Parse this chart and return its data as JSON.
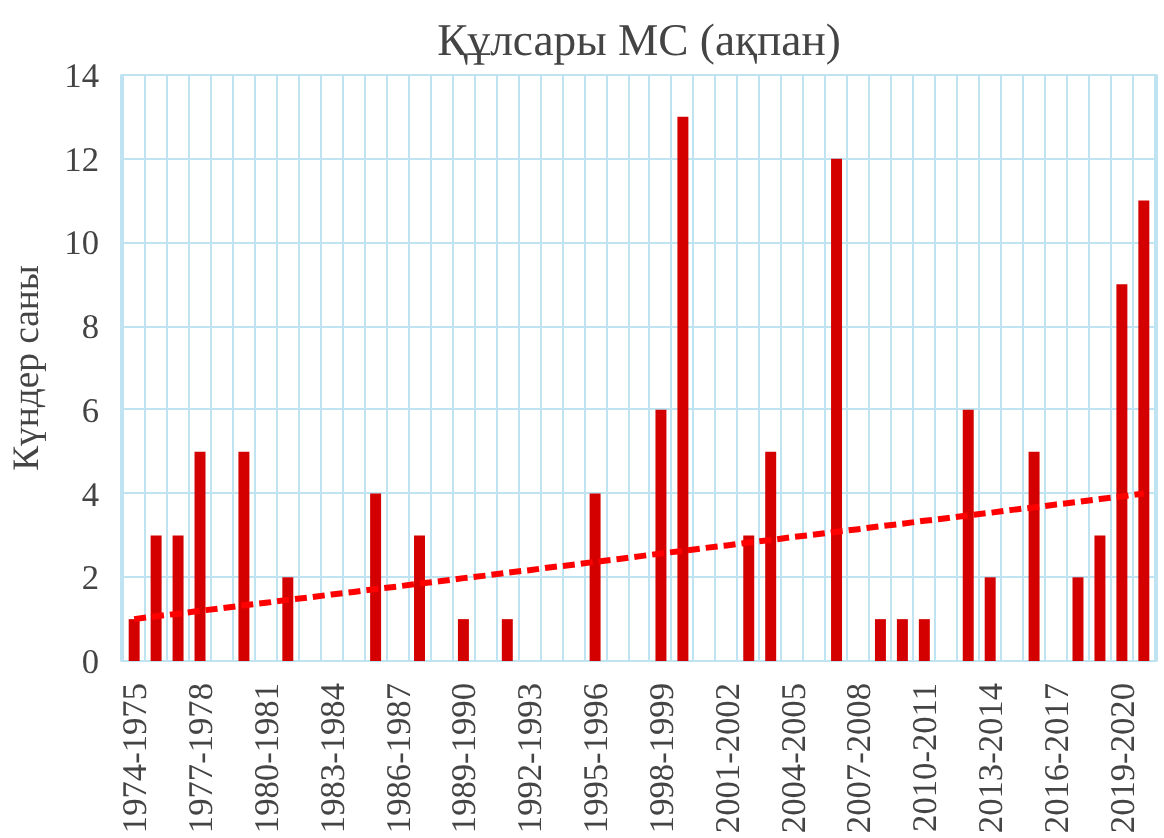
{
  "chart_data": {
    "type": "bar",
    "title": "Құлсары МС (ақпан)",
    "ylabel": "Күндер саны",
    "categories": [
      "1974-1975",
      null,
      null,
      "1977-1978",
      null,
      null,
      "1980-1981",
      null,
      null,
      "1983-1984",
      null,
      null,
      "1986-1987",
      null,
      null,
      "1989-1990",
      null,
      null,
      "1992-1993",
      null,
      null,
      "1995-1996",
      null,
      null,
      "1998-1999",
      null,
      null,
      "2001-2002",
      null,
      null,
      "2004-2005",
      null,
      null,
      "2007-2008",
      null,
      null,
      "2010-2011",
      null,
      null,
      "2013-2014",
      null,
      null,
      "2016-2017",
      null,
      null,
      "2019-2020",
      null
    ],
    "series": [
      {
        "color": "#d40000",
        "values": [
          1,
          3,
          3,
          5,
          0,
          5,
          0,
          2,
          0,
          0,
          0,
          4,
          0,
          3,
          0,
          1,
          0,
          1,
          0,
          0,
          0,
          4,
          0,
          0,
          6,
          13,
          0,
          0,
          3,
          5,
          0,
          0,
          12,
          0,
          1,
          1,
          1,
          0,
          6,
          2,
          0,
          5,
          0,
          2,
          3,
          9,
          11
        ]
      },
      {
        "type": "line",
        "color": "#ff0000",
        "line_style": "dashed",
        "values": [
          1.0,
          1.07,
          1.13,
          1.2,
          1.26,
          1.33,
          1.39,
          1.46,
          1.52,
          1.59,
          1.65,
          1.72,
          1.78,
          1.85,
          1.91,
          1.98,
          2.04,
          2.11,
          2.17,
          2.24,
          2.3,
          2.37,
          2.43,
          2.5,
          2.57,
          2.63,
          2.7,
          2.76,
          2.83,
          2.89,
          2.96,
          3.02,
          3.09,
          3.15,
          3.22,
          3.28,
          3.35,
          3.41,
          3.48,
          3.54,
          3.61,
          3.67,
          3.74,
          3.8,
          3.87,
          3.93,
          4.0
        ]
      }
    ],
    "ylim": [
      0,
      14
    ],
    "yticks": [
      0,
      2,
      4,
      6,
      8,
      10,
      12,
      14
    ],
    "grid": true
  }
}
